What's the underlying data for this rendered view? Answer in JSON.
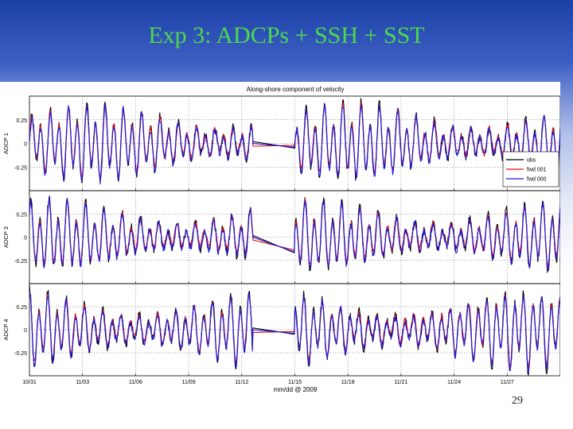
{
  "slide": {
    "title": "Exp 3: ADCPs + SSH + SST",
    "page_number": "29"
  },
  "chart_data": {
    "type": "line",
    "title": "Along-shore component of velocity",
    "xlabel": "mm/dd @ 2009",
    "x_ticks": [
      "10/31",
      "11/03",
      "11/06",
      "11/09",
      "11/12",
      "11/15",
      "11/18",
      "11/21",
      "11/24",
      "11/27"
    ],
    "x_range_days": [
      0,
      30
    ],
    "grid": true,
    "legend": {
      "placement": "right, top panel",
      "entries": [
        "obs",
        "fwd 001",
        "fwd 000"
      ]
    },
    "series_styles": [
      {
        "name": "obs",
        "color": "#000000"
      },
      {
        "name": "fwd 001",
        "color": "#e01010"
      },
      {
        "name": "fwd 000",
        "color": "#1a1ae6"
      }
    ],
    "data_gap_days": [
      12.6,
      15.0
    ],
    "panels": [
      {
        "ylabel": "ADCP 1",
        "yticks": [
          "0.25",
          "0",
          "-0.25"
        ],
        "ylim": [
          -0.5,
          0.5
        ],
        "amplitude": 0.32
      },
      {
        "ylabel": "ADCP 3",
        "yticks": [
          "0.25",
          "0",
          "-0.25"
        ],
        "ylim": [
          -0.5,
          0.5
        ],
        "amplitude": 0.3
      },
      {
        "ylabel": "ADCP 4",
        "yticks": [
          "0.25",
          "0",
          "-0.25"
        ],
        "ylim": [
          -0.5,
          0.5
        ],
        "amplitude": 0.33
      }
    ]
  }
}
